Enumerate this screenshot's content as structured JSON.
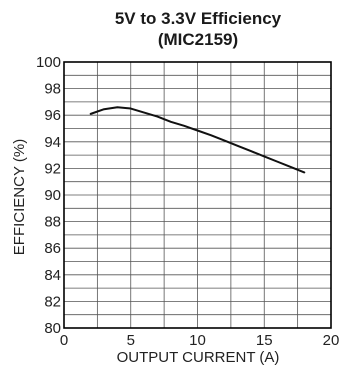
{
  "chart_data": {
    "type": "line",
    "title": "5V to 3.3V Efficiency",
    "subtitle": "(MIC2159)",
    "xlabel": "OUTPUT CURRENT (A)",
    "ylabel": "EFFICIENCY (%)",
    "xlim": [
      0,
      20
    ],
    "ylim": [
      80,
      100
    ],
    "x_ticks": [
      0,
      5,
      10,
      15,
      20
    ],
    "y_ticks": [
      80,
      82,
      84,
      86,
      88,
      90,
      92,
      94,
      96,
      98,
      100
    ],
    "grid": true,
    "series": [
      {
        "color": "#111111",
        "x": [
          2,
          3,
          4,
          5,
          6,
          7,
          8,
          9,
          10,
          11,
          12,
          13,
          14,
          15,
          16,
          17,
          18
        ],
        "y": [
          96.1,
          96.45,
          96.6,
          96.5,
          96.2,
          95.9,
          95.5,
          95.2,
          94.85,
          94.5,
          94.1,
          93.7,
          93.3,
          92.9,
          92.5,
          92.1,
          91.7
        ]
      }
    ]
  }
}
